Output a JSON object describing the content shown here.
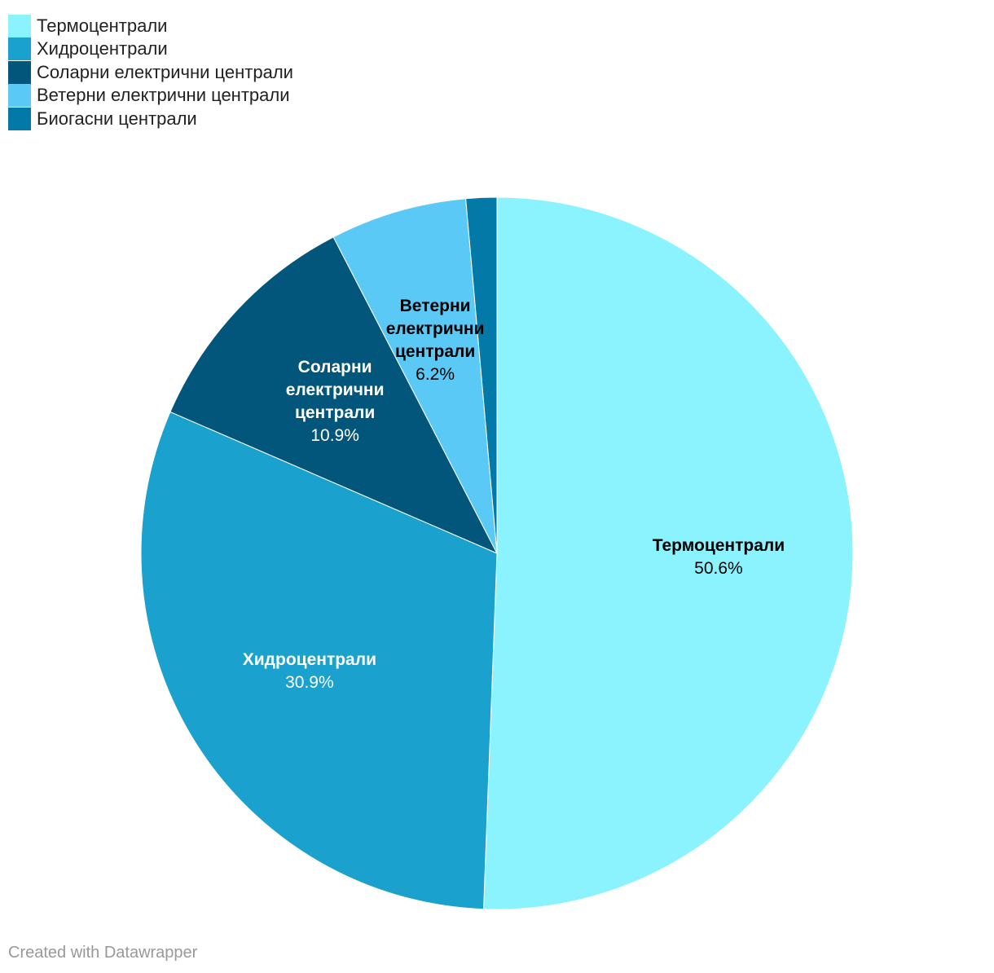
{
  "chart_data": {
    "type": "pie",
    "categories": [
      "Термоцентрали",
      "Хидроцентрали",
      "Соларни електрични централи",
      "Ветерни електрични централи",
      "Биогасни централи"
    ],
    "values": [
      50.6,
      30.9,
      10.9,
      6.2,
      1.4
    ],
    "value_labels": [
      "50.6%",
      "30.9%",
      "10.9%",
      "6.2%",
      null
    ],
    "colors": [
      "#8af3fe",
      "#1aa1ce",
      "#02567c",
      "#5ac9f5",
      "#0279a6"
    ],
    "legend": "top-left",
    "source": "Created with Datawrapper"
  }
}
